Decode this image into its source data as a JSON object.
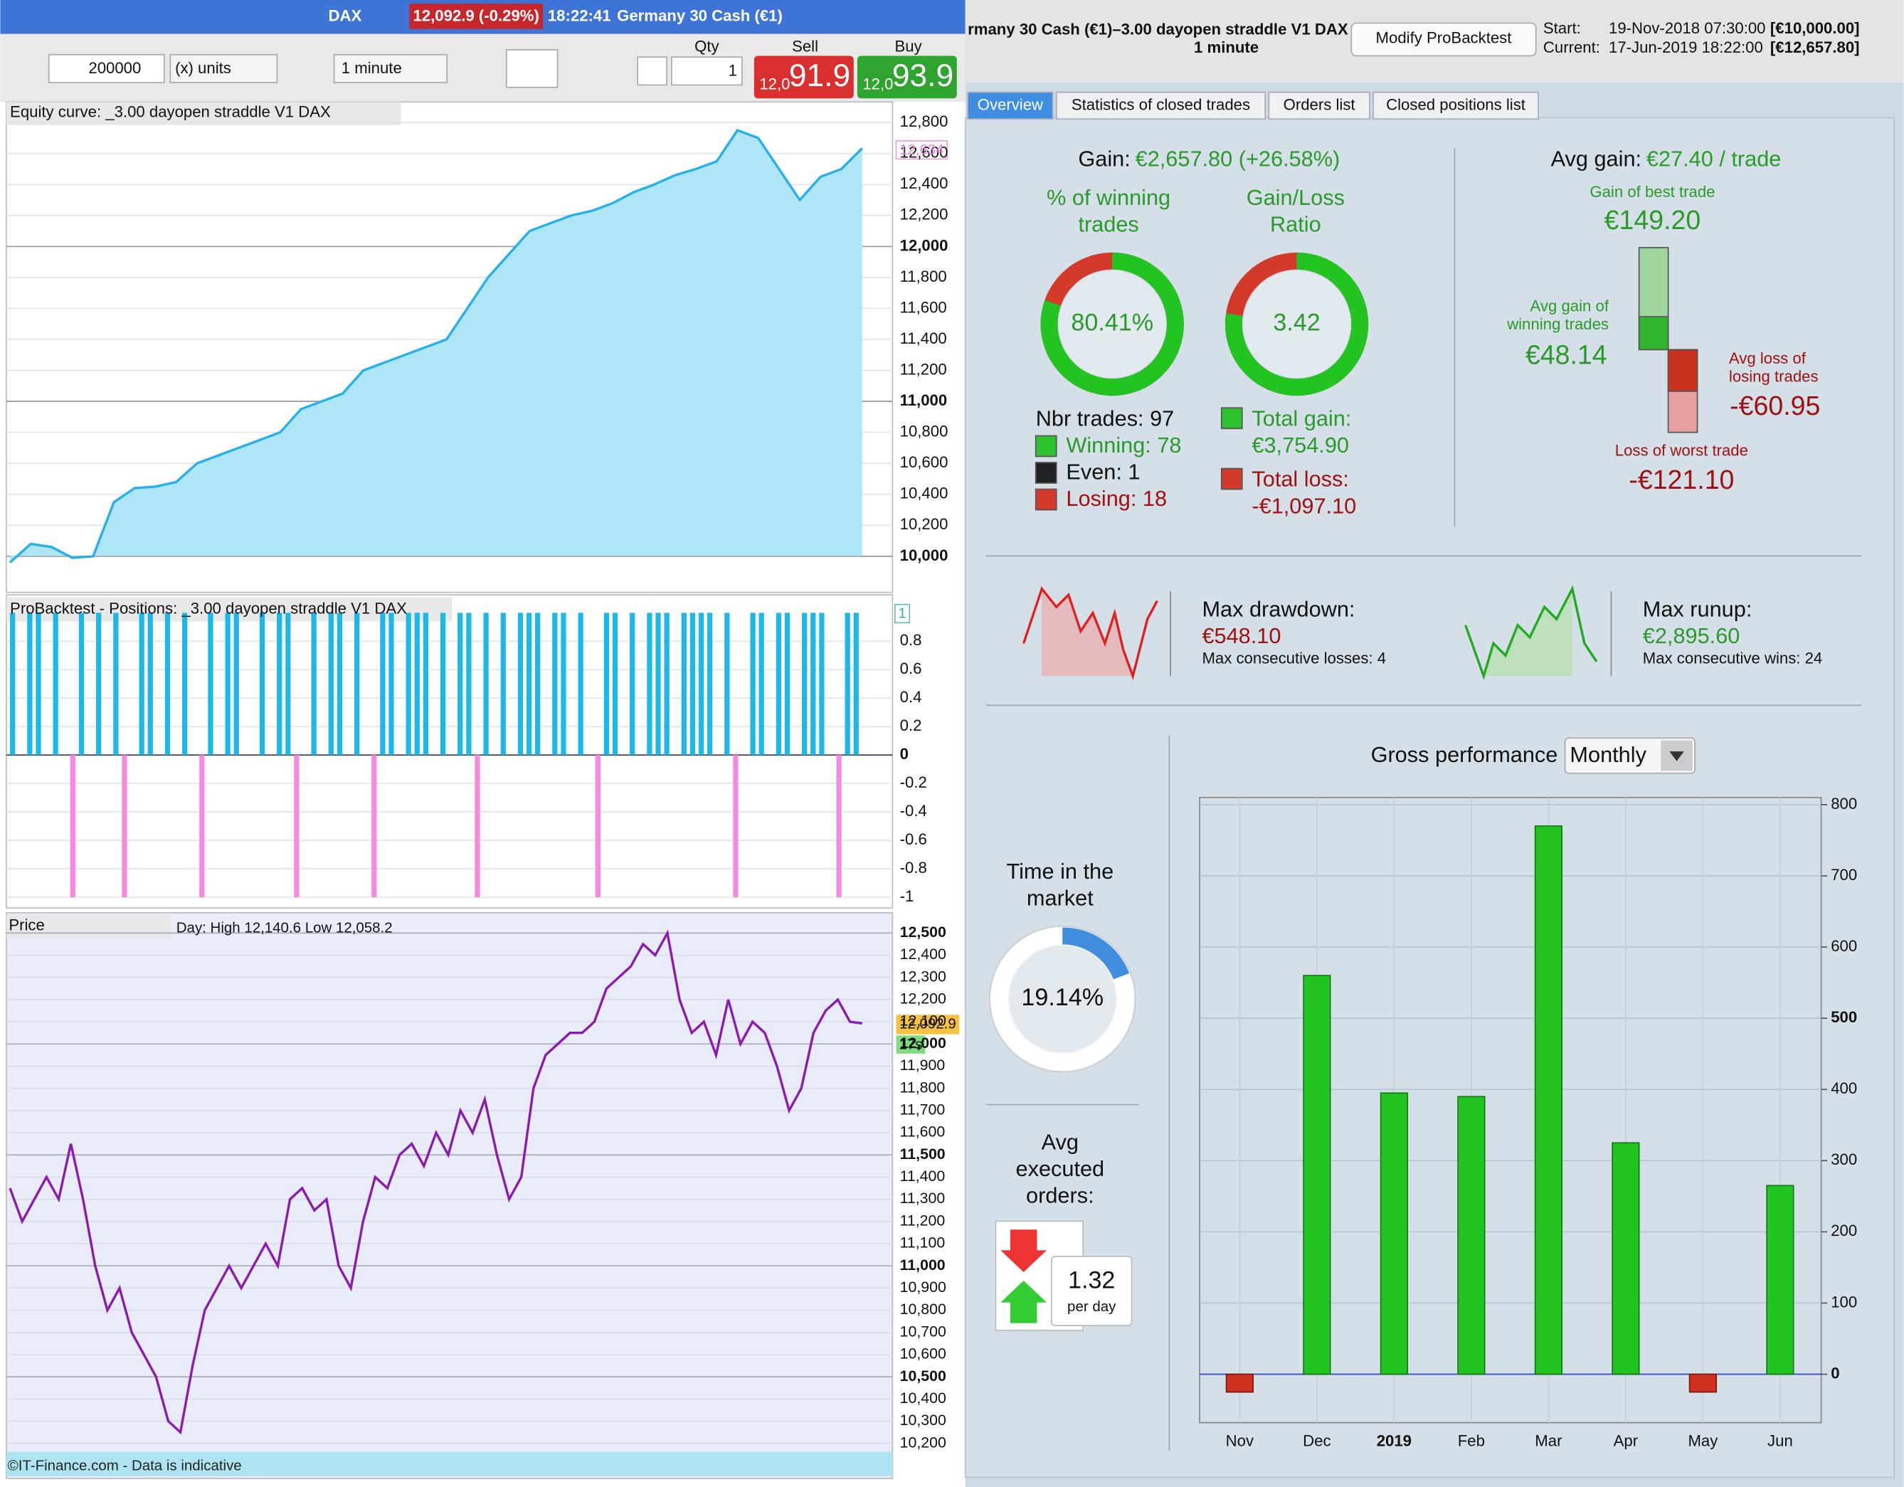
{
  "toolbar": {
    "instrument": "DAX",
    "price": "12,092.9 (-0.29%)",
    "time": "18:22:41",
    "name": "Germany 30 Cash (€1)",
    "quantity": "200000",
    "units": "(x) units",
    "interval": "1 minute",
    "qty_label": "Qty",
    "qty": "1",
    "sell_label": "Sell",
    "sell_prefix": "12,0",
    "sell": "91.9",
    "buy_label": "Buy",
    "buy_prefix": "12,0",
    "buy": "93.9"
  },
  "equity": {
    "title": "Equity curve: _3.00 dayopen straddle V1 DAX",
    "last_label": "12,634",
    "ylim": [
      9775,
      12925
    ],
    "yticks": [
      {
        "value": 10000,
        "label": "10,000"
      },
      {
        "value": 10200,
        "label": "10,200"
      },
      {
        "value": 10400,
        "label": "10,400"
      },
      {
        "value": 10600,
        "label": "10,600"
      },
      {
        "value": 10800,
        "label": "10,800"
      },
      {
        "value": 11000,
        "label": "11,000"
      },
      {
        "value": 11200,
        "label": "11,200"
      },
      {
        "value": 11400,
        "label": "11,400"
      },
      {
        "value": 11600,
        "label": "11,600"
      },
      {
        "value": 11800,
        "label": "11,800"
      },
      {
        "value": 12000,
        "label": "12,000"
      },
      {
        "value": 12200,
        "label": "12,200"
      },
      {
        "value": 12400,
        "label": "12,400"
      },
      {
        "value": 12600,
        "label": "12,600"
      },
      {
        "value": 12800,
        "label": "12,800"
      }
    ],
    "values": [
      9960,
      10080,
      10060,
      9990,
      10000,
      10350,
      10440,
      10450,
      10480,
      10600,
      10650,
      10700,
      10750,
      10800,
      10950,
      11000,
      11050,
      11200,
      11250,
      11300,
      11350,
      11400,
      11600,
      11800,
      11950,
      12100,
      12150,
      12200,
      12230,
      12280,
      12350,
      12400,
      12460,
      12500,
      12550,
      12750,
      12700,
      12500,
      12300,
      12450,
      12500,
      12634
    ]
  },
  "positions": {
    "title": "ProBacktest - Positions: _3.00 dayopen straddle V1 DAX",
    "top_label": "1",
    "ylim": [
      -1.05,
      1.05
    ],
    "yticks": [
      0.8,
      0.6,
      0.4,
      0.2,
      0,
      -0.2,
      -0.4,
      -0.6,
      -0.8,
      -1
    ],
    "values": [
      1,
      0,
      1,
      1,
      0,
      1,
      0,
      -1,
      1,
      0,
      1,
      0,
      1,
      -1,
      0,
      1,
      1,
      0,
      1,
      0,
      1,
      0,
      -1,
      1,
      0,
      1,
      1,
      0,
      0,
      1,
      0,
      1,
      1,
      -1,
      0,
      1,
      0,
      1,
      1,
      0,
      1,
      0,
      -1,
      1,
      1,
      0,
      1,
      1,
      1,
      0,
      1,
      0,
      1,
      1,
      -1,
      1,
      0,
      1,
      0,
      1,
      1,
      1,
      0,
      1,
      1,
      0,
      1,
      0,
      -1,
      1,
      1,
      0,
      1,
      0,
      1,
      1,
      1,
      0,
      1,
      1,
      1,
      1,
      0,
      1,
      -1,
      0,
      1,
      1,
      0,
      1,
      1,
      0,
      1,
      1,
      1,
      0,
      -1,
      1,
      1
    ]
  },
  "price": {
    "title": "Price",
    "info": "Day: High 12,140.6 Low 12,058.2",
    "last_label": "12,092.9",
    "timer": "17s",
    "copyright": "©IT-Finance.com - Data is indicative",
    "ylim": [
      10080,
      12580
    ],
    "yticks": [
      {
        "value": 10200,
        "label": "10,200"
      },
      {
        "value": 10300,
        "label": "10,300"
      },
      {
        "value": 10400,
        "label": "10,400"
      },
      {
        "value": 10500,
        "label": "10,500"
      },
      {
        "value": 10600,
        "label": "10,600"
      },
      {
        "value": 10700,
        "label": "10,700"
      },
      {
        "value": 10800,
        "label": "10,800"
      },
      {
        "value": 10900,
        "label": "10,900"
      },
      {
        "value": 11000,
        "label": "11,000"
      },
      {
        "value": 11100,
        "label": "11,100"
      },
      {
        "value": 11200,
        "label": "11,200"
      },
      {
        "value": 11300,
        "label": "11,300"
      },
      {
        "value": 11400,
        "label": "11,400"
      },
      {
        "value": 11500,
        "label": "11,500"
      },
      {
        "value": 11600,
        "label": "11,600"
      },
      {
        "value": 11700,
        "label": "11,700"
      },
      {
        "value": 11800,
        "label": "11,800"
      },
      {
        "value": 11900,
        "label": "11,900"
      },
      {
        "value": 12000,
        "label": "12,000"
      },
      {
        "value": 12100,
        "label": "12,100"
      },
      {
        "value": 12200,
        "label": "12,200"
      },
      {
        "value": 12300,
        "label": "12,300"
      },
      {
        "value": 12400,
        "label": "12,400"
      },
      {
        "value": 12500,
        "label": "12,500"
      }
    ],
    "values": [
      11350,
      11200,
      11300,
      11400,
      11300,
      11550,
      11300,
      11000,
      10800,
      10900,
      10700,
      10600,
      10500,
      10300,
      10250,
      10550,
      10800,
      10900,
      11000,
      10900,
      11000,
      11100,
      11000,
      11300,
      11350,
      11250,
      11300,
      11000,
      10900,
      11200,
      11400,
      11350,
      11500,
      11550,
      11450,
      11600,
      11500,
      11700,
      11600,
      11750,
      11500,
      11300,
      11400,
      11800,
      11950,
      12000,
      12050,
      12050,
      12100,
      12250,
      12300,
      12350,
      12450,
      12400,
      12500,
      12200,
      12050,
      12100,
      11950,
      12200,
      12000,
      12100,
      12050,
      11900,
      11700,
      11800,
      12050,
      12150,
      12200,
      12100,
      12092.9
    ]
  },
  "header": {
    "strategy": "rmany 30 Cash (€1)–3.00 dayopen straddle V1 DAX",
    "interval": "1 minute",
    "button": "Modify ProBacktest",
    "start_label": "Start:",
    "start_date": "19-Nov-2018 07:30:00",
    "start_capital": "[€10,000.00]",
    "current_label": "Current:",
    "current_date": "17-Jun-2019 18:22:00",
    "current_capital": "[€12,657.80]"
  },
  "tabs": [
    "Overview",
    "Statistics of closed trades",
    "Orders list",
    "Closed positions list"
  ],
  "stats": {
    "gain_label": "Gain:",
    "gain": "€2,657.80 (+26.58%)",
    "winning_title": [
      "% of winning",
      "trades"
    ],
    "ratio_title": [
      "Gain/Loss",
      "Ratio"
    ],
    "winning_pct": {
      "value": 80.41,
      "label": "80.41%"
    },
    "ratio": 3.42,
    "nbr_trades": "Nbr trades: 97",
    "winning": "Winning: 78",
    "even": "Even: 1",
    "losing": "Losing: 18",
    "total_gain_label": "Total gain:",
    "total_gain": "€3,754.90",
    "total_loss_label": "Total loss:",
    "total_loss": "-€1,097.10",
    "avg_gain_label": "Avg gain:",
    "avg_gain": "€27.40 / trade",
    "best_label": "Gain of best trade",
    "avg_win_label": [
      "Avg gain of",
      "winning trades"
    ],
    "avg_loss_label": [
      "Avg loss of",
      "losing trades"
    ],
    "worst_label": "Loss of worst trade",
    "trade_bars": {
      "values": [
        149.2,
        48.14,
        -60.95,
        -121.1
      ],
      "value_labels": [
        "€149.20",
        "€48.14",
        "-€60.95",
        "-€121.10"
      ]
    },
    "drawdown_label": "Max drawdown:",
    "drawdown": "€548.10",
    "max_losses": "Max consecutive losses: 4",
    "runup_label": "Max runup:",
    "runup": "€2,895.60",
    "max_wins": "Max consecutive wins: 24",
    "time_label": [
      "Time in the",
      "market"
    ],
    "time_in_market": {
      "value": 19.14,
      "label": "19.14%"
    },
    "orders_label": [
      "Avg",
      "executed",
      "orders:"
    ],
    "orders": "1.32",
    "orders_unit": "per day"
  },
  "chart_data": {
    "type": "bar",
    "title": "Gross performance",
    "period": "Monthly",
    "categories": [
      "Nov",
      "Dec",
      "2019",
      "Feb",
      "Mar",
      "Apr",
      "May",
      "Jun"
    ],
    "values": [
      -25,
      560,
      395,
      390,
      770,
      325,
      -25,
      265
    ],
    "ylim": [
      -68,
      810
    ],
    "yticks": [
      0,
      100,
      200,
      300,
      400,
      500,
      600,
      700,
      800
    ],
    "colors": {
      "positive": "#22c422",
      "negative": "#d03020"
    }
  }
}
